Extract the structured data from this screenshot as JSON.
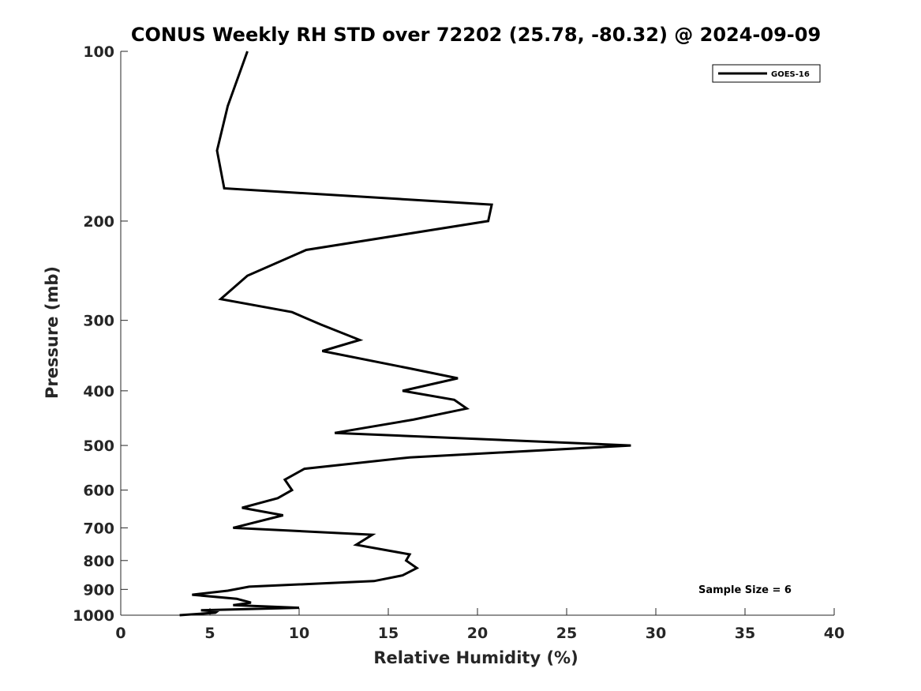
{
  "chart_data": {
    "type": "line",
    "title": "CONUS Weekly RH STD over 72202 (25.78, -80.32) @ 2024-09-09",
    "xlabel": "Relative Humidity (%)",
    "ylabel": "Pressure (mb)",
    "xlim": [
      0,
      40
    ],
    "ylim": [
      100,
      1000
    ],
    "y_scale": "log",
    "y_reversed": true,
    "grid": false,
    "legend_position": "top-right",
    "x_ticks": [
      "0",
      "5",
      "10",
      "15",
      "20",
      "25",
      "30",
      "35",
      "40"
    ],
    "y_ticks": [
      "100",
      "200",
      "300",
      "400",
      "500",
      "600",
      "700",
      "800",
      "900",
      "1000"
    ],
    "series": [
      {
        "name": "GOES-16",
        "color": "#000000",
        "points": [
          [
            7.1,
            100
          ],
          [
            6.0,
            125
          ],
          [
            5.4,
            150
          ],
          [
            5.8,
            175
          ],
          [
            20.8,
            187
          ],
          [
            20.6,
            200
          ],
          [
            10.4,
            225
          ],
          [
            7.1,
            250
          ],
          [
            5.6,
            275
          ],
          [
            9.6,
            290
          ],
          [
            11.2,
            305
          ],
          [
            13.4,
            325
          ],
          [
            11.3,
            340
          ],
          [
            16.2,
            365
          ],
          [
            18.9,
            380
          ],
          [
            15.8,
            400
          ],
          [
            18.7,
            415
          ],
          [
            19.4,
            430
          ],
          [
            16.4,
            450
          ],
          [
            12.0,
            475
          ],
          [
            28.6,
            500
          ],
          [
            16.2,
            525
          ],
          [
            10.3,
            550
          ],
          [
            9.2,
            575
          ],
          [
            9.6,
            600
          ],
          [
            8.8,
            620
          ],
          [
            6.8,
            645
          ],
          [
            9.1,
            665
          ],
          [
            6.3,
            700
          ],
          [
            14.1,
            720
          ],
          [
            13.2,
            750
          ],
          [
            16.2,
            780
          ],
          [
            16.0,
            800
          ],
          [
            16.6,
            825
          ],
          [
            15.8,
            850
          ],
          [
            14.2,
            870
          ],
          [
            7.2,
            890
          ],
          [
            6.0,
            905
          ],
          [
            4.0,
            920
          ],
          [
            6.5,
            935
          ],
          [
            7.3,
            950
          ],
          [
            6.3,
            960
          ],
          [
            10.0,
            970
          ],
          [
            4.5,
            980
          ],
          [
            5.4,
            985
          ],
          [
            5.3,
            990
          ],
          [
            3.3,
            1000
          ]
        ]
      }
    ],
    "annotation": "Sample Size = 6"
  }
}
